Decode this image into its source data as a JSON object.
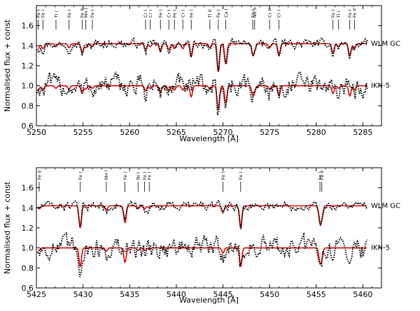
{
  "chart_data": [
    {
      "type": "line",
      "xlabel": "Wavelength [Å]",
      "ylabel": "Normalised flux + const",
      "xlim": [
        5250,
        5287
      ],
      "ylim": [
        0.6,
        1.8
      ],
      "xticks": [
        5250,
        5255,
        5260,
        5265,
        5270,
        5275,
        5280,
        5285
      ],
      "yticks": [
        0.6,
        0.8,
        1.0,
        1.2,
        1.4,
        1.6
      ],
      "series": [
        {
          "name": "WLM GC",
          "baseline": 1.42,
          "noise": 0.03
        },
        {
          "name": "IKN-5",
          "baseline": 1.0,
          "noise": 0.08
        }
      ],
      "model_color": "#dd0000",
      "observed_color": "#000000",
      "lines": [
        {
          "label": "Fe I",
          "x": 5250.2,
          "depth": 0.05
        },
        {
          "label": "Fe I",
          "x": 5250.7,
          "depth": 0.05
        },
        {
          "label": "Ti I",
          "x": 5252.1,
          "depth": 0.03
        },
        {
          "label": "Fe I",
          "x": 5253.5,
          "depth": 0.04
        },
        {
          "label": "Fe II",
          "x": 5254.9,
          "depth": 0.09
        },
        {
          "label": "Mn I",
          "x": 5255.3,
          "depth": 0.04
        },
        {
          "label": "Fe I",
          "x": 5256.0,
          "depth": 0.03
        },
        {
          "label": "Cr I",
          "x": 5261.7,
          "depth": 0.06
        },
        {
          "label": "Cr I",
          "x": 5262.2,
          "depth": 0.03
        },
        {
          "label": "Fe I",
          "x": 5263.3,
          "depth": 0.08
        },
        {
          "label": "Cr I",
          "x": 5264.2,
          "depth": 0.06
        },
        {
          "label": "Fe I",
          "x": 5264.8,
          "depth": 0.05
        },
        {
          "label": "Cr I",
          "x": 5265.7,
          "depth": 0.05
        },
        {
          "label": "Fe I",
          "x": 5266.6,
          "depth": 0.13
        },
        {
          "label": "Ti II",
          "x": 5268.6,
          "depth": 0.04
        },
        {
          "label": "Fe I",
          "x": 5269.5,
          "depth": 0.28
        },
        {
          "label": "Ca I",
          "x": 5270.3,
          "depth": 0.2
        },
        {
          "label": "Fe I",
          "x": 5273.2,
          "depth": 0.1
        },
        {
          "label": "Nd II",
          "x": 5273.4,
          "depth": 0.05
        },
        {
          "label": "Cr II",
          "x": 5275.0,
          "depth": 0.04
        },
        {
          "label": "Cr I",
          "x": 5276.0,
          "depth": 0.12
        },
        {
          "label": "Fe I",
          "x": 5281.8,
          "depth": 0.09
        },
        {
          "label": "Ti I",
          "x": 5282.4,
          "depth": 0.03
        },
        {
          "label": "Fe I",
          "x": 5283.6,
          "depth": 0.12
        },
        {
          "label": "Fe II",
          "x": 5284.1,
          "depth": 0.05
        }
      ]
    },
    {
      "type": "line",
      "xlabel": "Wavelength [Å]",
      "ylabel": "Normalised flux + const",
      "xlim": [
        5425,
        5462
      ],
      "ylim": [
        0.6,
        1.8
      ],
      "xticks": [
        5425,
        5430,
        5435,
        5440,
        5445,
        5450,
        5455,
        5460
      ],
      "yticks": [
        0.6,
        0.8,
        1.0,
        1.2,
        1.4,
        1.6
      ],
      "series": [
        {
          "name": "WLM GC",
          "baseline": 1.42,
          "noise": 0.03
        },
        {
          "name": "IKN-5",
          "baseline": 1.0,
          "noise": 0.08
        }
      ],
      "model_color": "#dd0000",
      "observed_color": "#000000",
      "lines": [
        {
          "label": "Fe II",
          "x": 5425.3,
          "depth": 0.03
        },
        {
          "label": "Fe I",
          "x": 5429.7,
          "depth": 0.22
        },
        {
          "label": "Mn I",
          "x": 5432.5,
          "depth": 0.04
        },
        {
          "label": "Fe I",
          "x": 5434.5,
          "depth": 0.17
        },
        {
          "label": "Ni I",
          "x": 5435.9,
          "depth": 0.03
        },
        {
          "label": "Fe I",
          "x": 5436.6,
          "depth": 0.03
        },
        {
          "label": "Fe I",
          "x": 5437.1,
          "depth": 0.02
        },
        {
          "label": "Fe I",
          "x": 5445.0,
          "depth": 0.06
        },
        {
          "label": "Fe I",
          "x": 5446.9,
          "depth": 0.22
        },
        {
          "label": "Fe I",
          "x": 5455.4,
          "depth": 0.15
        },
        {
          "label": "Fe II",
          "x": 5455.6,
          "depth": 0.1
        }
      ]
    }
  ]
}
